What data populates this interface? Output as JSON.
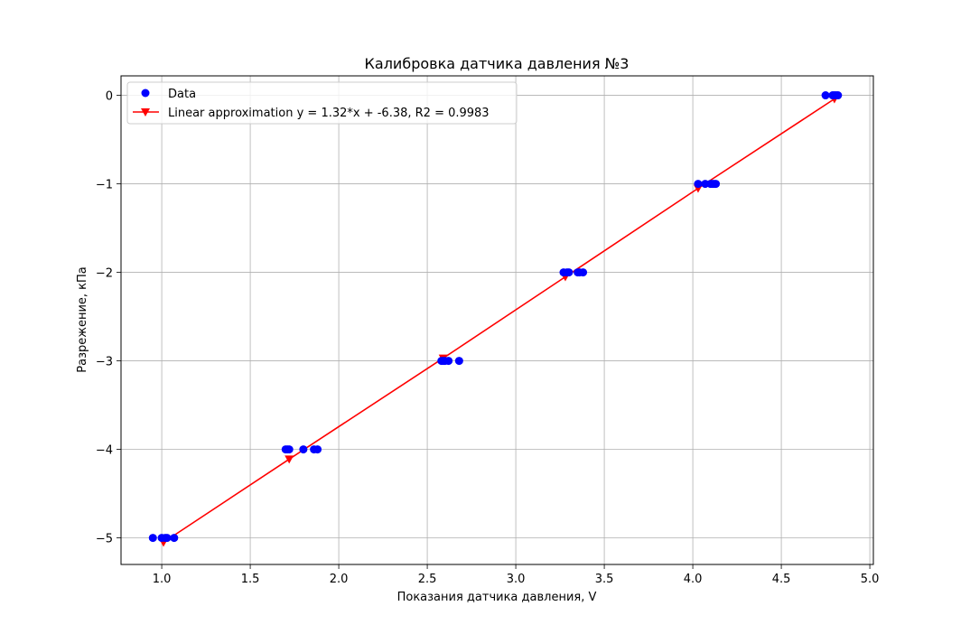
{
  "chart_data": {
    "type": "scatter",
    "title": "Калибровка датчика давления №3",
    "xlabel": "Показания датчика давления, V",
    "ylabel": "Разрежение, кПа",
    "xlim": [
      0.77,
      5.02
    ],
    "ylim": [
      -5.3,
      0.22
    ],
    "xticks": [
      1.0,
      1.5,
      2.0,
      2.5,
      3.0,
      3.5,
      4.0,
      4.5,
      5.0
    ],
    "xtick_labels": [
      "1.0",
      "1.5",
      "2.0",
      "2.5",
      "3.0",
      "3.5",
      "4.0",
      "4.5",
      "5.0"
    ],
    "yticks": [
      0,
      -1,
      -2,
      -3,
      -4,
      -5
    ],
    "ytick_labels": [
      "0",
      "−1",
      "−2",
      "−3",
      "−4",
      "−5"
    ],
    "grid": true,
    "legend_position": "top-left",
    "series": [
      {
        "name": "Data",
        "kind": "scatter",
        "color": "#0000ff",
        "marker": "circle",
        "points": [
          [
            0.95,
            -5
          ],
          [
            1.0,
            -5
          ],
          [
            1.02,
            -5
          ],
          [
            1.03,
            -5
          ],
          [
            1.07,
            -5
          ],
          [
            1.7,
            -4
          ],
          [
            1.71,
            -4
          ],
          [
            1.72,
            -4
          ],
          [
            1.8,
            -4
          ],
          [
            1.86,
            -4
          ],
          [
            1.88,
            -4
          ],
          [
            2.58,
            -3
          ],
          [
            2.59,
            -3
          ],
          [
            2.6,
            -3
          ],
          [
            2.62,
            -3
          ],
          [
            2.68,
            -3
          ],
          [
            3.27,
            -2
          ],
          [
            3.29,
            -2
          ],
          [
            3.3,
            -2
          ],
          [
            3.35,
            -2
          ],
          [
            3.36,
            -2
          ],
          [
            3.38,
            -2
          ],
          [
            4.03,
            -1
          ],
          [
            4.07,
            -1
          ],
          [
            4.1,
            -1
          ],
          [
            4.11,
            -1
          ],
          [
            4.12,
            -1
          ],
          [
            4.13,
            -1
          ],
          [
            4.75,
            0
          ],
          [
            4.79,
            0
          ],
          [
            4.8,
            0
          ],
          [
            4.81,
            0
          ],
          [
            4.82,
            0
          ]
        ]
      },
      {
        "name": "Linear approximation y = 1.32*x + -6.38, R2 = 0.9983",
        "kind": "line",
        "color": "#ff0000",
        "marker": "triangle-down",
        "points": [
          [
            1.01,
            -5.05
          ],
          [
            1.72,
            -4.11
          ],
          [
            2.59,
            -2.97
          ],
          [
            3.28,
            -2.05
          ],
          [
            4.03,
            -1.05
          ],
          [
            4.8,
            -0.04
          ]
        ]
      }
    ]
  }
}
